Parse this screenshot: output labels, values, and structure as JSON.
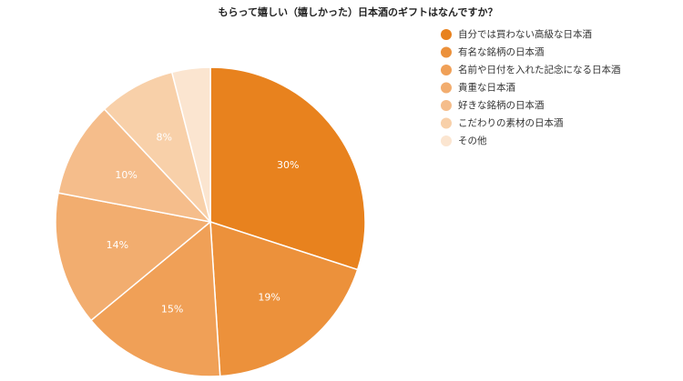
{
  "chart_data": {
    "type": "pie",
    "title": "もらって嬉しい（嬉しかった）日本酒のギフトはなんですか？",
    "categories": [
      "自分では買わない高級な日本酒",
      "有名な銘柄の日本酒",
      "名前や日付を入れた記念になる日本酒",
      "貴重な日本酒",
      "好きな銘柄の日本酒",
      "こだわりの素材の日本酒",
      "その他"
    ],
    "values": [
      30,
      19,
      15,
      14,
      10,
      8,
      4
    ],
    "value_labels": [
      "30%",
      "19%",
      "15%",
      "14%",
      "10%",
      "8%",
      null
    ],
    "colors": [
      "#e8821e",
      "#ec913b",
      "#f0a057",
      "#f2ad6f",
      "#f5bd8b",
      "#f8d0a9",
      "#fbe5d0"
    ],
    "legend": "right"
  }
}
